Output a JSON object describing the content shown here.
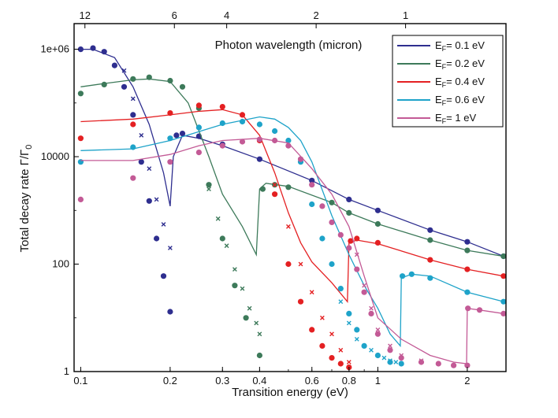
{
  "chart_data": {
    "type": "line",
    "title": "",
    "xlabel": "Transition energy (eV)",
    "ylabel": "Total decay rate  Γ/Γ",
    "ylabel_subscript": "0",
    "top_axis_label": "Photon wavelength (micron)",
    "x_scale": "log",
    "y_scale": "log",
    "xlim": [
      0.095,
      2.7
    ],
    "ylim": [
      1,
      3000000
    ],
    "x_ticks": [
      {
        "value": 0.1,
        "label": "0.1"
      },
      {
        "value": 0.2,
        "label": "0.2"
      },
      {
        "value": 0.3,
        "label": "0.3"
      },
      {
        "value": 0.4,
        "label": "0.4"
      },
      {
        "value": 0.6,
        "label": "0.6"
      },
      {
        "value": 0.8,
        "label": "0.8"
      },
      {
        "value": 1,
        "label": "1"
      },
      {
        "value": 2,
        "label": "2"
      }
    ],
    "top_ticks": [
      {
        "wavelength": 12,
        "label": "12"
      },
      {
        "wavelength": 6,
        "label": "6"
      },
      {
        "wavelength": 4,
        "label": "4"
      },
      {
        "wavelength": 2,
        "label": "2"
      },
      {
        "wavelength": 1,
        "label": "1"
      }
    ],
    "y_ticks": [
      {
        "value": 1,
        "label": "1"
      },
      {
        "value": 100,
        "label": "100"
      },
      {
        "value": 10000,
        "label": "10000"
      },
      {
        "value": 1000000,
        "label": "1e+06"
      }
    ],
    "legend_position": "top-right",
    "grid": false,
    "series": [
      {
        "name": "0.1",
        "color": "#2e2e8f",
        "line": {
          "x": [
            0.1,
            0.11,
            0.13,
            0.15,
            0.17,
            0.19,
            0.2,
            0.205,
            0.22,
            0.25,
            0.3,
            0.4,
            0.6,
            0.8,
            1.0,
            1.5,
            2.0,
            2.65
          ],
          "y": [
            1000000,
            1000000,
            700000,
            200000,
            40000,
            5000,
            1200,
            10000,
            25000,
            22000,
            16000,
            9000,
            3600,
            1600,
            1000,
            430,
            260,
            140
          ]
        },
        "dots": {
          "x": [
            0.1,
            0.11,
            0.12,
            0.13,
            0.14,
            0.15,
            0.16,
            0.17,
            0.18,
            0.19,
            0.2,
            0.21,
            0.22,
            0.25,
            0.3,
            0.4,
            0.6,
            0.8,
            1.0,
            1.5,
            2.0,
            2.65
          ],
          "y": [
            1000000,
            1050000,
            900000,
            500000,
            200000,
            60000,
            8000,
            1500,
            300,
            60,
            13,
            25000,
            27000,
            24000,
            17000,
            9000,
            3600,
            1600,
            1000,
            430,
            260,
            140
          ]
        },
        "crosses": {
          "x": [
            0.14,
            0.15,
            0.16,
            0.17,
            0.18,
            0.19,
            0.2
          ],
          "y": [
            400000,
            120000,
            25000,
            6000,
            1600,
            550,
            200
          ]
        }
      },
      {
        "name": "0.2",
        "color": "#3d7a5a",
        "line": {
          "x": [
            0.1,
            0.12,
            0.15,
            0.17,
            0.2,
            0.23,
            0.27,
            0.3,
            0.35,
            0.39,
            0.4,
            0.42,
            0.5,
            0.7,
            0.8,
            1.0,
            1.5,
            2.0,
            2.65
          ],
          "y": [
            200000,
            230000,
            270000,
            280000,
            250000,
            100000,
            10000,
            2000,
            500,
            150,
            2500,
            3200,
            2800,
            1400,
            900,
            560,
            280,
            180,
            140
          ]
        },
        "dots": {
          "x": [
            0.1,
            0.12,
            0.15,
            0.17,
            0.2,
            0.22,
            0.25,
            0.27,
            0.3,
            0.33,
            0.36,
            0.4,
            0.41,
            0.45,
            0.5,
            0.7,
            0.8,
            1.0,
            1.5,
            2.0,
            2.65
          ],
          "y": [
            150000,
            220000,
            280000,
            300000,
            260000,
            200000,
            80000,
            3000,
            300,
            40,
            10,
            2,
            2500,
            3000,
            2700,
            1400,
            900,
            560,
            280,
            180,
            140
          ]
        },
        "crosses": {
          "x": [
            0.27,
            0.29,
            0.31,
            0.33,
            0.35,
            0.37,
            0.39,
            0.4
          ],
          "y": [
            2500,
            700,
            220,
            80,
            35,
            15,
            8,
            5
          ]
        }
      },
      {
        "name": "0.4",
        "color": "#e42022",
        "line": {
          "x": [
            0.1,
            0.15,
            0.2,
            0.25,
            0.3,
            0.35,
            0.4,
            0.45,
            0.5,
            0.55,
            0.6,
            0.7,
            0.79,
            0.8,
            0.85,
            1.0,
            1.5,
            2.0,
            2.65
          ],
          "y": [
            45000,
            50000,
            60000,
            70000,
            75000,
            60000,
            25000,
            5000,
            900,
            250,
            110,
            45,
            20,
            250,
            280,
            240,
            120,
            80,
            60
          ]
        },
        "dots": {
          "x": [
            0.1,
            0.15,
            0.2,
            0.25,
            0.3,
            0.35,
            0.4,
            0.45,
            0.5,
            0.55,
            0.6,
            0.65,
            0.7,
            0.75,
            0.8,
            0.81,
            0.85,
            1.0,
            1.5,
            2.0,
            2.65
          ],
          "y": [
            22000,
            40000,
            65000,
            90000,
            85000,
            60000,
            20000,
            2000,
            100,
            20,
            6,
            3,
            1.8,
            1.4,
            1.2,
            270,
            300,
            250,
            120,
            80,
            60
          ]
        },
        "crosses": {
          "x": [
            0.45,
            0.5,
            0.55,
            0.6,
            0.65,
            0.7,
            0.75,
            0.8
          ],
          "y": [
            3000,
            500,
            100,
            30,
            10,
            5,
            2.5,
            1.5
          ]
        }
      },
      {
        "name": "0.6",
        "color": "#1ea3c9",
        "line": {
          "x": [
            0.1,
            0.15,
            0.2,
            0.3,
            0.4,
            0.45,
            0.5,
            0.55,
            0.6,
            0.7,
            0.8,
            0.9,
            1.0,
            1.1,
            1.19,
            1.2,
            1.3,
            1.5,
            2.0,
            2.65
          ],
          "y": [
            13000,
            14000,
            20000,
            40000,
            55000,
            50000,
            35000,
            20000,
            8000,
            800,
            150,
            40,
            15,
            5,
            3,
            55,
            65,
            60,
            30,
            20
          ]
        },
        "dots": {
          "x": [
            0.1,
            0.15,
            0.2,
            0.25,
            0.3,
            0.35,
            0.4,
            0.45,
            0.5,
            0.55,
            0.6,
            0.65,
            0.7,
            0.75,
            0.8,
            0.85,
            0.9,
            1.0,
            1.1,
            1.2,
            1.21,
            1.3,
            1.5,
            2.0,
            2.65
          ],
          "y": [
            8000,
            15000,
            22000,
            35000,
            42000,
            45000,
            40000,
            30000,
            20000,
            8000,
            1300,
            300,
            100,
            35,
            12,
            6,
            3,
            2,
            1.5,
            1.4,
            60,
            65,
            55,
            30,
            20
          ]
        },
        "crosses": {
          "x": [
            0.75,
            0.8,
            0.85,
            0.9,
            0.95,
            1.0,
            1.05,
            1.1,
            1.15,
            1.2
          ],
          "y": [
            20,
            8,
            4,
            3,
            2.5,
            2,
            1.8,
            1.6,
            1.5,
            1.4
          ]
        }
      },
      {
        "name": "1",
        "color": "#c35a96",
        "line": {
          "x": [
            0.1,
            0.15,
            0.2,
            0.25,
            0.3,
            0.4,
            0.5,
            0.6,
            0.7,
            0.8,
            0.9,
            1.0,
            1.2,
            1.5,
            1.8,
            1.99,
            2.0,
            2.2,
            2.65
          ],
          "y": [
            8500,
            8500,
            11000,
            16000,
            20000,
            22000,
            18000,
            6000,
            2000,
            500,
            60,
            10,
            4,
            2,
            1.5,
            1.4,
            15,
            14,
            12
          ]
        },
        "dots": {
          "x": [
            0.1,
            0.15,
            0.2,
            0.25,
            0.3,
            0.35,
            0.4,
            0.45,
            0.5,
            0.55,
            0.6,
            0.65,
            0.7,
            0.75,
            0.8,
            0.85,
            0.9,
            0.95,
            1.0,
            1.1,
            1.2,
            1.4,
            1.6,
            1.8,
            2.0,
            2.01,
            2.2,
            2.65
          ],
          "y": [
            1600,
            4000,
            8000,
            12000,
            16000,
            19000,
            21000,
            20000,
            16000,
            9000,
            3000,
            1200,
            600,
            350,
            200,
            80,
            30,
            12,
            5,
            2.5,
            1.8,
            1.5,
            1.4,
            1.3,
            1.3,
            15,
            14,
            12
          ]
        },
        "crosses": {
          "x": [
            0.85,
            0.9,
            0.95,
            1.0,
            1.1,
            1.2,
            1.4,
            1.6,
            1.8,
            2.0
          ],
          "y": [
            150,
            40,
            15,
            6,
            3,
            2,
            1.6,
            1.4,
            1.3,
            1.3
          ]
        }
      }
    ],
    "legend": {
      "prefix": "E",
      "subscript": "F",
      "suffix": " eV"
    }
  }
}
